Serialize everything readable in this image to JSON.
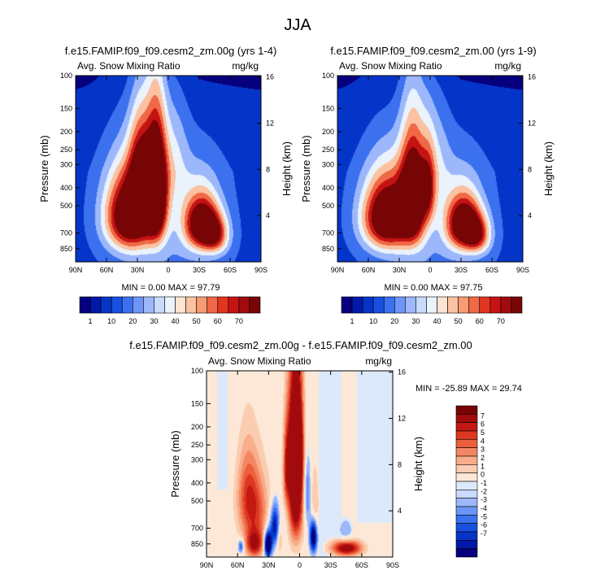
{
  "page_title": "JJA",
  "colors": {
    "abs_scale": [
      "#06007f",
      "#0019a8",
      "#0535c8",
      "#1850e0",
      "#3b70ef",
      "#6c95f7",
      "#9cb8fb",
      "#c8dafd",
      "#eaf2fc",
      "#fde3d1",
      "#fbc1a1",
      "#f89a72",
      "#f06845",
      "#e0351f",
      "#c51314",
      "#a10b0d",
      "#780505"
    ],
    "diff_scale": [
      "#06007f",
      "#0019a8",
      "#0535c8",
      "#1850e0",
      "#3b70ef",
      "#6c95f7",
      "#9cb8fb",
      "#c8dafd",
      "#dce9fb",
      "#fde8d8",
      "#fbcdb0",
      "#f9ad8a",
      "#f48763",
      "#ec5f3d",
      "#dc3720",
      "#c41812",
      "#a10b0d",
      "#780505"
    ],
    "diff_neg_bg": "#d9e8fb",
    "diff_pos_bg": "#fde6d6"
  },
  "chart_data": [
    {
      "type": "heatmap",
      "panel": "top-left",
      "title": "f.e15.FAMIP.f09_f09.cesm2_zm.00g (yrs 1-4)",
      "left_label": "Avg. Snow Mixing Ratio",
      "right_label": "mg/kg",
      "xlabel": "",
      "ylabel": "Pressure (mb)",
      "y2label": "Height (km)",
      "x_ticks": [
        "90N",
        "60N",
        "30N",
        "0",
        "30S",
        "60S",
        "90S"
      ],
      "x_tick_values": [
        90,
        60,
        30,
        0,
        -30,
        -60,
        -90
      ],
      "y_ticks": [
        "100",
        "150",
        "200",
        "250",
        "300",
        "400",
        "500",
        "700",
        "850"
      ],
      "y_tick_values": [
        100,
        150,
        200,
        250,
        300,
        400,
        500,
        700,
        850
      ],
      "y2_ticks": [
        "16",
        "12",
        "8",
        "4"
      ],
      "y2_tick_values": [
        16,
        12,
        8,
        4
      ],
      "ylim": [
        100,
        1000
      ],
      "xlim": [
        90,
        -90
      ],
      "stats": "MIN =  0.00   MAX = 97.79",
      "min": 0.0,
      "max": 97.79,
      "colorbar_labels": [
        "1",
        "10",
        "20",
        "30",
        "40",
        "50",
        "60",
        "70"
      ],
      "fields": [
        {
          "lat": 37,
          "p": 560,
          "slat": 17,
          "sp": 190,
          "amp": 92
        },
        {
          "lat": 12,
          "p": 400,
          "slat": 7,
          "sp": 210,
          "amp": 88
        },
        {
          "lat": 27,
          "p": 330,
          "slat": 8,
          "sp": 150,
          "amp": 55
        },
        {
          "lat": -32,
          "p": 620,
          "slat": 12,
          "sp": 150,
          "amp": 82
        },
        {
          "lat": -46,
          "p": 720,
          "slat": 9,
          "sp": 120,
          "amp": 42
        },
        {
          "lat": -5,
          "p": 280,
          "slat": 10,
          "sp": 150,
          "amp": 18
        }
      ]
    },
    {
      "type": "heatmap",
      "panel": "top-right",
      "title": "f.e15.FAMIP.f09_f09.cesm2_zm.00 (yrs 1-9)",
      "left_label": "Avg. Snow Mixing Ratio",
      "right_label": "mg/kg",
      "xlabel": "",
      "ylabel": "Pressure (mb)",
      "y2label": "Height (km)",
      "x_ticks": [
        "90N",
        "60N",
        "30N",
        "0",
        "30S",
        "60S",
        "90S"
      ],
      "x_tick_values": [
        90,
        60,
        30,
        0,
        -30,
        -60,
        -90
      ],
      "y_ticks": [
        "100",
        "150",
        "200",
        "250",
        "300",
        "400",
        "500",
        "700",
        "850"
      ],
      "y_tick_values": [
        100,
        150,
        200,
        250,
        300,
        400,
        500,
        700,
        850
      ],
      "y2_ticks": [
        "16",
        "12",
        "8",
        "4"
      ],
      "y2_tick_values": [
        16,
        12,
        8,
        4
      ],
      "ylim": [
        100,
        1000
      ],
      "xlim": [
        90,
        -90
      ],
      "stats": "MIN =  0.00   MAX = 97.75",
      "min": 0.0,
      "max": 97.75,
      "colorbar_labels": [
        "1",
        "10",
        "20",
        "30",
        "40",
        "50",
        "60",
        "70"
      ],
      "fields": [
        {
          "lat": 42,
          "p": 570,
          "slat": 17,
          "sp": 180,
          "amp": 90
        },
        {
          "lat": 17,
          "p": 440,
          "slat": 9,
          "sp": 220,
          "amp": 76
        },
        {
          "lat": 2,
          "p": 400,
          "slat": 5,
          "sp": 130,
          "amp": 34
        },
        {
          "lat": -32,
          "p": 620,
          "slat": 12,
          "sp": 150,
          "amp": 82
        },
        {
          "lat": -46,
          "p": 720,
          "slat": 9,
          "sp": 120,
          "amp": 42
        },
        {
          "lat": -5,
          "p": 290,
          "slat": 10,
          "sp": 150,
          "amp": 16
        }
      ]
    },
    {
      "type": "heatmap",
      "panel": "bottom-difference",
      "title": "f.e15.FAMIP.f09_f09.cesm2_zm.00g - f.e15.FAMIP.f09_f09.cesm2_zm.00",
      "left_label": "Avg. Snow Mixing Ratio",
      "right_label": "mg/kg",
      "xlabel": "",
      "ylabel": "Pressure (mb)",
      "y2label": "Height (km)",
      "x_ticks": [
        "90N",
        "60N",
        "30N",
        "0",
        "30S",
        "60S",
        "90S"
      ],
      "x_tick_values": [
        90,
        60,
        30,
        0,
        -30,
        -60,
        -90
      ],
      "y_ticks": [
        "100",
        "150",
        "200",
        "250",
        "300",
        "400",
        "500",
        "700",
        "850"
      ],
      "y_tick_values": [
        100,
        150,
        200,
        250,
        300,
        400,
        500,
        700,
        850
      ],
      "y2_ticks": [
        "16",
        "12",
        "8",
        "4"
      ],
      "y2_tick_values": [
        16,
        12,
        8,
        4
      ],
      "ylim": [
        100,
        1000
      ],
      "xlim": [
        90,
        -90
      ],
      "stats": "MIN = -25.89   MAX =  29.74",
      "min": -25.89,
      "max": 29.74,
      "colorbar_labels": [
        "7",
        "6",
        "5",
        "4",
        "3",
        "2",
        "1",
        "0",
        "-1",
        "-2",
        "-3",
        "-4",
        "-5",
        "-6",
        "-7"
      ],
      "fields": [
        {
          "lat": 4,
          "p": 380,
          "slat": 5,
          "sp": 260,
          "amp": 12
        },
        {
          "lat": 4,
          "p": 260,
          "slat": 4,
          "sp": 90,
          "amp": 8
        },
        {
          "lat": 13,
          "p": 330,
          "slat": 2.5,
          "sp": 120,
          "amp": 5
        },
        {
          "lat": -7,
          "p": 450,
          "slat": 2.5,
          "sp": 140,
          "amp": -4
        },
        {
          "lat": 23,
          "p": 680,
          "slat": 4,
          "sp": 120,
          "amp": -9
        },
        {
          "lat": 31,
          "p": 850,
          "slat": 2.5,
          "sp": 90,
          "amp": -12
        },
        {
          "lat": -13,
          "p": 770,
          "slat": 2.5,
          "sp": 110,
          "amp": -10
        },
        {
          "lat": 20,
          "p": 720,
          "slat": 2.5,
          "sp": 130,
          "amp": 6
        },
        {
          "lat": 44,
          "p": 560,
          "slat": 10,
          "sp": 180,
          "amp": 5
        },
        {
          "lat": 44,
          "p": 850,
          "slat": 6,
          "sp": 100,
          "amp": 7
        },
        {
          "lat": -45,
          "p": 890,
          "slat": 10,
          "sp": 60,
          "amp": 9
        },
        {
          "lat": -44,
          "p": 740,
          "slat": 5,
          "sp": 90,
          "amp": -2
        },
        {
          "lat": -14,
          "p": 560,
          "slat": 3,
          "sp": 180,
          "amp": 2.5
        },
        {
          "lat": 51,
          "p": 420,
          "slat": 7,
          "sp": 160,
          "amp": 3
        },
        {
          "lat": 57,
          "p": 870,
          "slat": 2,
          "sp": 50,
          "amp": -5
        }
      ]
    }
  ]
}
